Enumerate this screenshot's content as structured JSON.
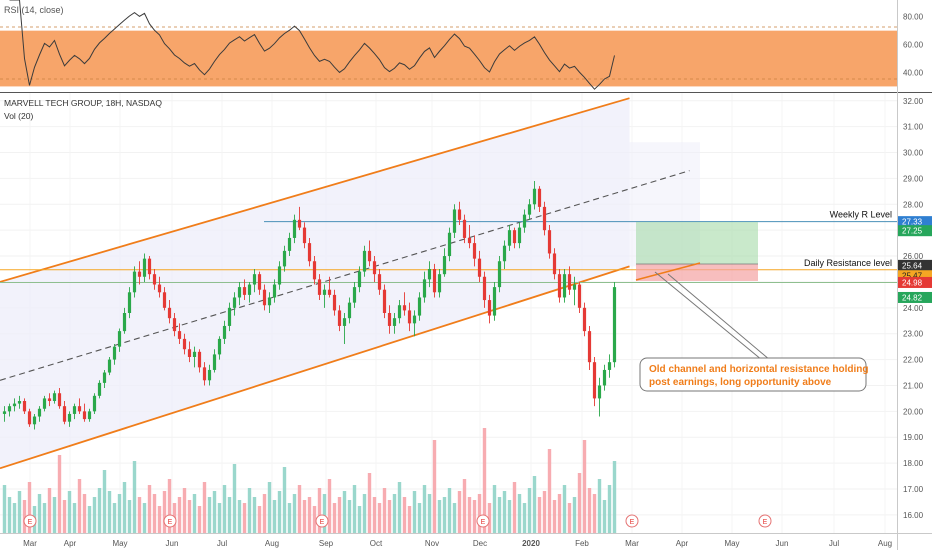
{
  "rsi": {
    "label": "RSI (14, close)",
    "band_color": "#f7a56a",
    "line_color": "#3b3b3b",
    "band_range": [
      30,
      70
    ],
    "ylim": [
      26,
      92
    ],
    "ticks": [
      {
        "v": 80,
        "label": "80.00"
      },
      {
        "v": 60,
        "label": "60.00"
      },
      {
        "v": 40,
        "label": "40.00"
      }
    ]
  },
  "main": {
    "title": "MARVELL TECH GROUP, 18H, NASDAQ",
    "vol_label": "Vol (20)",
    "ylim": [
      15.3,
      32.3
    ],
    "price_ticks": [
      "32.00",
      "31.00",
      "30.00",
      "29.00",
      "28.00",
      "27.00",
      "26.00",
      "25.00",
      "24.00",
      "23.00",
      "22.00",
      "21.00",
      "20.00",
      "19.00",
      "18.00",
      "17.00",
      "16.00"
    ],
    "price_tick_values": [
      32,
      31,
      30,
      29,
      28,
      27,
      26,
      25,
      24,
      23,
      22,
      21,
      20,
      19,
      18,
      17,
      16
    ],
    "price_badges": [
      {
        "value": "27.33",
        "color": "#2f7fd1",
        "text_color": "#ffffff",
        "y": 27.33
      },
      {
        "value": "27.25",
        "color": "#26a65b",
        "text_color": "#ffffff",
        "y": 26.98
      },
      {
        "value": "25.64",
        "color": "#333333",
        "text_color": "#ffffff",
        "y": 25.64
      },
      {
        "value": "25.47",
        "color": "#f5a623",
        "text_color": "#222222",
        "y": 25.24
      },
      {
        "value": "24.98",
        "color": "#e53935",
        "text_color": "#ffffff",
        "y": 24.98
      },
      {
        "value": "24.82",
        "color": "#26a65b",
        "text_color": "#ffffff",
        "y": 24.4
      }
    ],
    "levels": [
      {
        "name": "Weekly R Level",
        "value": 27.33,
        "color": "#4a90b8"
      },
      {
        "name": "Daily Resistance level",
        "value": 25.47,
        "color": "#f5a623"
      }
    ],
    "extra_line_value": 24.98,
    "annotation_lines": [
      "Old channel and horizontal  resistance holding",
      "post earnings, long opportunity above"
    ],
    "annotation_color": "#f07d1a"
  },
  "chart_data": {
    "type": "candlestick",
    "x_labels": [
      "Mar",
      "Apr",
      "May",
      "Jun",
      "Jul",
      "Aug",
      "Sep",
      "Oct",
      "Nov",
      "Dec",
      "2020",
      "Feb",
      "Mar",
      "Apr",
      "May",
      "Jun",
      "Jul",
      "Aug"
    ],
    "y_range": [
      15.3,
      32.3
    ],
    "candles": [
      [
        19.9,
        20.2,
        19.6,
        20.0
      ],
      [
        20.0,
        20.3,
        19.8,
        20.2
      ],
      [
        20.2,
        20.5,
        20.0,
        20.3
      ],
      [
        20.3,
        20.6,
        20.1,
        20.4
      ],
      [
        20.4,
        20.5,
        19.9,
        20.0
      ],
      [
        20.0,
        20.1,
        19.4,
        19.5
      ],
      [
        19.5,
        19.9,
        19.3,
        19.8
      ],
      [
        19.8,
        20.2,
        19.6,
        20.1
      ],
      [
        20.1,
        20.6,
        20.0,
        20.5
      ],
      [
        20.5,
        20.7,
        20.2,
        20.4
      ],
      [
        20.4,
        20.8,
        20.3,
        20.7
      ],
      [
        20.7,
        20.9,
        20.1,
        20.2
      ],
      [
        20.2,
        20.4,
        19.5,
        19.6
      ],
      [
        19.6,
        20.0,
        19.4,
        19.9
      ],
      [
        19.9,
        20.3,
        19.7,
        20.2
      ],
      [
        20.2,
        20.5,
        19.9,
        20.0
      ],
      [
        20.0,
        20.3,
        19.6,
        19.7
      ],
      [
        19.7,
        20.1,
        19.6,
        20.0
      ],
      [
        20.0,
        20.7,
        19.9,
        20.6
      ],
      [
        20.6,
        21.2,
        20.5,
        21.1
      ],
      [
        21.1,
        21.6,
        20.9,
        21.5
      ],
      [
        21.5,
        22.1,
        21.4,
        22.0
      ],
      [
        22.0,
        22.6,
        21.8,
        22.5
      ],
      [
        22.5,
        23.2,
        22.3,
        23.1
      ],
      [
        23.1,
        24.0,
        23.0,
        23.8
      ],
      [
        23.8,
        24.8,
        23.6,
        24.6
      ],
      [
        24.6,
        25.6,
        24.4,
        25.4
      ],
      [
        25.4,
        25.8,
        24.9,
        25.2
      ],
      [
        25.2,
        26.1,
        25.0,
        25.9
      ],
      [
        25.9,
        26.0,
        25.1,
        25.3
      ],
      [
        25.3,
        25.5,
        24.7,
        24.9
      ],
      [
        24.9,
        25.2,
        24.4,
        24.6
      ],
      [
        24.6,
        24.8,
        23.9,
        24.0
      ],
      [
        24.0,
        24.3,
        23.4,
        23.6
      ],
      [
        23.6,
        23.8,
        22.9,
        23.1
      ],
      [
        23.1,
        23.4,
        22.6,
        22.8
      ],
      [
        22.8,
        23.0,
        22.2,
        22.4
      ],
      [
        22.4,
        22.7,
        21.9,
        22.1
      ],
      [
        22.1,
        22.5,
        21.7,
        22.3
      ],
      [
        22.3,
        22.4,
        21.5,
        21.7
      ],
      [
        21.7,
        21.9,
        21.0,
        21.2
      ],
      [
        21.2,
        21.8,
        21.0,
        21.6
      ],
      [
        21.6,
        22.4,
        21.5,
        22.2
      ],
      [
        22.2,
        22.9,
        22.0,
        22.8
      ],
      [
        22.8,
        23.5,
        22.6,
        23.3
      ],
      [
        23.3,
        24.2,
        23.1,
        24.0
      ],
      [
        24.0,
        24.6,
        23.7,
        24.4
      ],
      [
        24.4,
        25.0,
        24.1,
        24.8
      ],
      [
        24.8,
        25.1,
        24.3,
        24.5
      ],
      [
        24.5,
        25.0,
        24.2,
        24.9
      ],
      [
        24.9,
        25.5,
        24.6,
        25.3
      ],
      [
        25.3,
        25.4,
        24.5,
        24.7
      ],
      [
        24.7,
        24.9,
        23.9,
        24.1
      ],
      [
        24.1,
        24.6,
        23.8,
        24.4
      ],
      [
        24.4,
        25.1,
        24.2,
        24.9
      ],
      [
        24.9,
        25.8,
        24.7,
        25.6
      ],
      [
        25.6,
        26.4,
        25.4,
        26.2
      ],
      [
        26.2,
        26.9,
        26.0,
        26.7
      ],
      [
        26.7,
        27.6,
        26.5,
        27.4
      ],
      [
        27.4,
        27.9,
        27.0,
        27.1
      ],
      [
        27.1,
        27.3,
        26.3,
        26.5
      ],
      [
        26.5,
        26.7,
        25.6,
        25.8
      ],
      [
        25.8,
        26.0,
        24.9,
        25.1
      ],
      [
        25.1,
        25.3,
        24.3,
        24.5
      ],
      [
        24.5,
        24.9,
        24.0,
        24.7
      ],
      [
        24.7,
        25.2,
        24.4,
        24.5
      ],
      [
        24.5,
        24.7,
        23.7,
        23.9
      ],
      [
        23.9,
        24.1,
        23.1,
        23.3
      ],
      [
        23.3,
        23.8,
        22.6,
        23.6
      ],
      [
        23.6,
        24.4,
        23.4,
        24.2
      ],
      [
        24.2,
        25.0,
        24.0,
        24.8
      ],
      [
        24.8,
        25.6,
        24.6,
        25.4
      ],
      [
        25.4,
        26.4,
        25.2,
        26.2
      ],
      [
        26.2,
        26.6,
        25.6,
        25.8
      ],
      [
        25.8,
        26.0,
        25.0,
        25.3
      ],
      [
        25.3,
        25.5,
        24.5,
        24.7
      ],
      [
        24.7,
        24.9,
        23.6,
        23.8
      ],
      [
        23.8,
        24.1,
        23.0,
        23.3
      ],
      [
        23.3,
        23.8,
        23.0,
        23.6
      ],
      [
        23.6,
        24.3,
        23.4,
        24.1
      ],
      [
        24.1,
        24.6,
        23.7,
        23.9
      ],
      [
        23.9,
        24.2,
        23.1,
        23.4
      ],
      [
        23.4,
        23.9,
        22.9,
        23.7
      ],
      [
        23.7,
        24.6,
        23.5,
        24.4
      ],
      [
        24.4,
        25.4,
        24.2,
        25.1
      ],
      [
        25.1,
        25.8,
        24.8,
        25.5
      ],
      [
        25.5,
        25.7,
        24.4,
        24.6
      ],
      [
        24.6,
        25.5,
        24.4,
        25.3
      ],
      [
        25.3,
        26.3,
        25.2,
        26.0
      ],
      [
        26.0,
        27.1,
        25.8,
        26.9
      ],
      [
        26.9,
        28.0,
        26.7,
        27.8
      ],
      [
        27.8,
        28.1,
        27.2,
        27.4
      ],
      [
        27.4,
        27.6,
        26.5,
        26.7
      ],
      [
        26.7,
        27.2,
        26.3,
        26.5
      ],
      [
        26.5,
        26.8,
        25.6,
        25.9
      ],
      [
        25.9,
        26.2,
        25.0,
        25.2
      ],
      [
        25.2,
        25.4,
        24.0,
        24.3
      ],
      [
        24.3,
        24.5,
        23.4,
        23.7
      ],
      [
        23.7,
        25.0,
        23.5,
        24.8
      ],
      [
        24.8,
        26.0,
        24.6,
        25.8
      ],
      [
        25.8,
        26.6,
        25.5,
        26.4
      ],
      [
        26.4,
        27.2,
        26.2,
        27.0
      ],
      [
        27.0,
        27.1,
        26.3,
        26.5
      ],
      [
        26.5,
        27.3,
        26.3,
        27.1
      ],
      [
        27.1,
        27.8,
        26.9,
        27.6
      ],
      [
        27.6,
        28.2,
        27.4,
        28.0
      ],
      [
        28.0,
        28.9,
        27.8,
        28.6
      ],
      [
        28.6,
        28.7,
        27.7,
        27.9
      ],
      [
        27.9,
        28.1,
        26.8,
        27.0
      ],
      [
        27.0,
        27.2,
        25.9,
        26.1
      ],
      [
        26.1,
        26.3,
        25.1,
        25.3
      ],
      [
        25.3,
        25.5,
        24.2,
        24.4
      ],
      [
        24.4,
        25.5,
        24.2,
        25.3
      ],
      [
        25.3,
        25.6,
        24.5,
        24.7
      ],
      [
        24.7,
        25.2,
        24.1,
        24.9
      ],
      [
        24.9,
        25.0,
        23.8,
        24.0
      ],
      [
        24.0,
        24.2,
        22.9,
        23.1
      ],
      [
        23.1,
        23.3,
        21.6,
        21.9
      ],
      [
        21.9,
        22.1,
        20.2,
        20.5
      ],
      [
        20.5,
        21.3,
        19.8,
        21.0
      ],
      [
        21.0,
        21.8,
        20.8,
        21.6
      ],
      [
        21.6,
        22.2,
        21.3,
        21.9
      ],
      [
        21.9,
        25.0,
        21.7,
        24.8
      ]
    ],
    "volume": [
      1.6,
      1.2,
      1.0,
      1.4,
      1.1,
      1.7,
      0.9,
      1.3,
      1.0,
      1.5,
      1.2,
      2.6,
      1.1,
      1.4,
      1.0,
      1.8,
      1.3,
      0.9,
      1.2,
      1.5,
      2.1,
      1.4,
      1.0,
      1.3,
      1.7,
      1.1,
      2.4,
      1.2,
      1.0,
      1.6,
      1.3,
      0.9,
      1.4,
      1.8,
      1.0,
      1.2,
      1.5,
      1.1,
      1.3,
      0.9,
      1.7,
      1.2,
      1.4,
      1.0,
      1.6,
      1.2,
      2.3,
      1.1,
      1.0,
      1.5,
      1.2,
      0.9,
      1.3,
      1.7,
      1.1,
      1.4,
      2.2,
      1.0,
      1.3,
      1.6,
      1.1,
      1.2,
      0.9,
      1.5,
      1.3,
      1.8,
      1.0,
      1.2,
      1.4,
      1.1,
      1.6,
      0.9,
      1.3,
      2.0,
      1.2,
      1.0,
      1.5,
      1.1,
      1.3,
      1.7,
      1.2,
      0.9,
      1.4,
      1.0,
      1.6,
      1.3,
      3.1,
      1.1,
      1.2,
      1.5,
      1.0,
      1.4,
      1.8,
      1.2,
      1.1,
      1.3,
      3.5,
      1.0,
      1.6,
      1.2,
      1.4,
      1.1,
      1.7,
      1.3,
      1.0,
      1.5,
      1.9,
      1.2,
      1.4,
      2.8,
      1.1,
      1.3,
      1.6,
      1.0,
      1.2,
      2.0,
      3.1,
      1.5,
      1.3,
      1.8,
      1.1,
      1.6,
      2.4
    ],
    "channel": {
      "lower": [
        [
          0,
          17.8
        ],
        [
          125,
          25.6
        ]
      ],
      "upper": [
        [
          0,
          25.0
        ],
        [
          125,
          32.1
        ]
      ],
      "mid": [
        [
          0,
          21.2
        ],
        [
          137,
          29.3
        ]
      ]
    },
    "earnings_markers": [
      "E",
      "E",
      "E",
      "E",
      "E",
      "E"
    ]
  }
}
